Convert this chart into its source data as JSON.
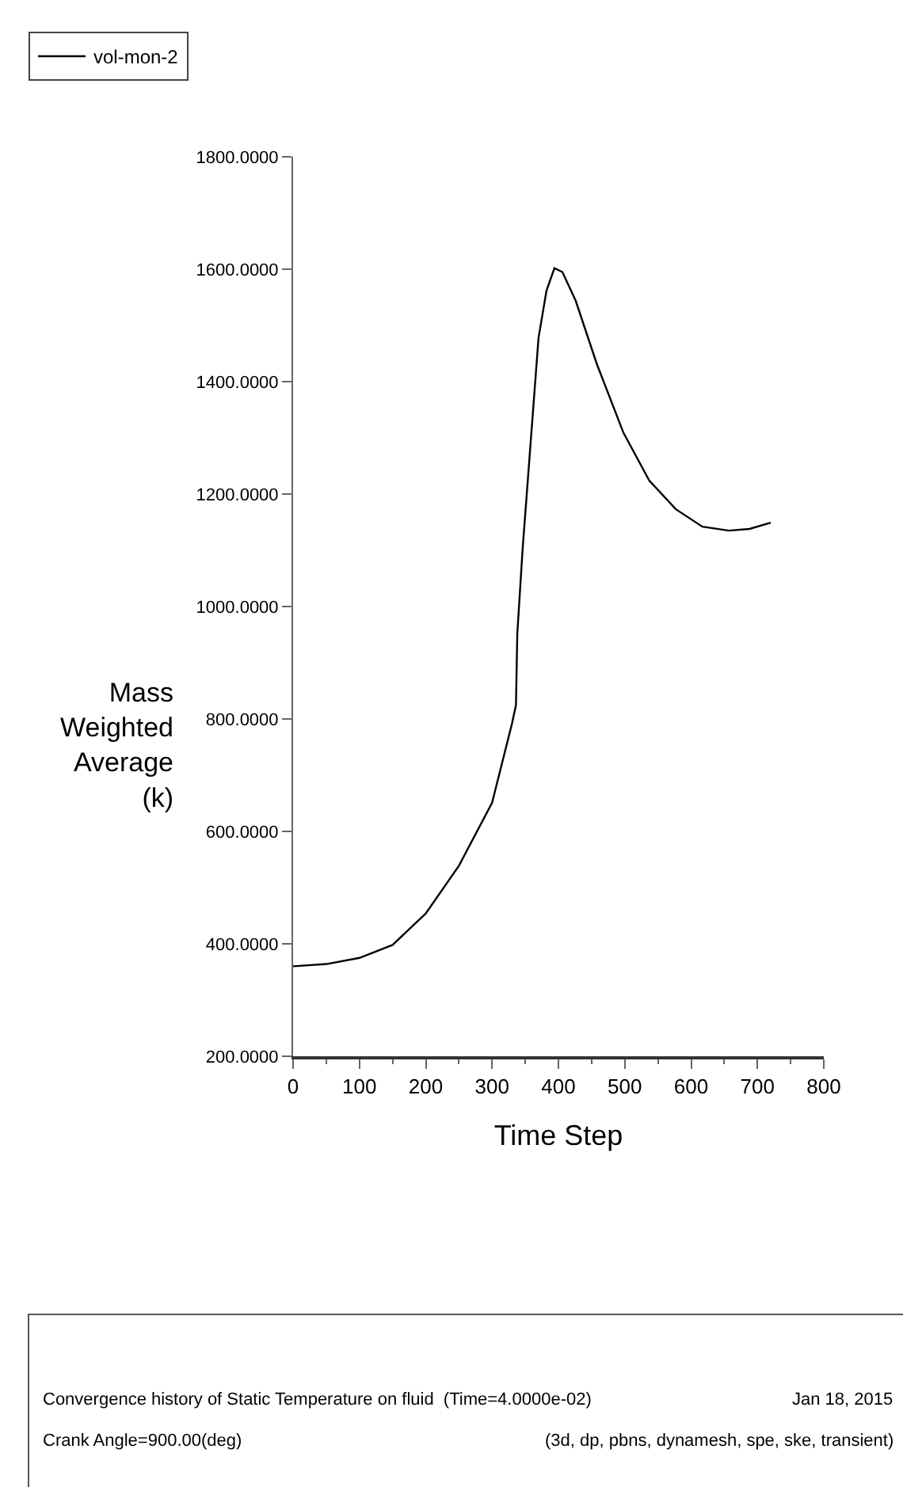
{
  "chart_data": {
    "type": "line",
    "xlabel": "Time Step",
    "ylabel": "Mass Weighted Average (k)",
    "series": [
      {
        "name": "vol-mon-2",
        "color": "#000000",
        "x": [
          0,
          50,
          100,
          150,
          200,
          250,
          300,
          330,
          336,
          338,
          346,
          358,
          370,
          382,
          394,
          406,
          426,
          458,
          498,
          537,
          577,
          617,
          657,
          688,
          720
        ],
        "values": [
          360,
          364,
          375,
          398,
          454,
          539,
          651,
          792,
          825,
          952,
          1102,
          1290,
          1478,
          1562,
          1602,
          1595,
          1544,
          1431,
          1309,
          1224,
          1173,
          1142,
          1135,
          1138,
          1149
        ]
      }
    ],
    "xlim": [
      0,
      800
    ],
    "xticks": [
      0,
      100,
      200,
      300,
      400,
      500,
      600,
      700,
      800
    ],
    "ylim": [
      200,
      1800
    ],
    "yticks": [
      {
        "value": 200,
        "label": "200.0000"
      },
      {
        "value": 400,
        "label": "400.0000"
      },
      {
        "value": 600,
        "label": "600.0000"
      },
      {
        "value": 800,
        "label": "800.0000"
      },
      {
        "value": 1000,
        "label": "1000.0000"
      },
      {
        "value": 1200,
        "label": "1200.0000"
      },
      {
        "value": 1400,
        "label": "1400.0000"
      },
      {
        "value": 1600,
        "label": "1600.0000"
      },
      {
        "value": 1800,
        "label": "1800.0000"
      }
    ],
    "legend": "top left",
    "marker": "none",
    "line_style": "solid",
    "annotations": [
      "Convergence history of Static Temperature on fluid  (Time=4.0000e-02)",
      "Jan 18, 2015",
      "Crank Angle=900.00(deg)",
      "(3d, dp, pbns, dynamesh, spe, ske, transient)"
    ]
  }
}
